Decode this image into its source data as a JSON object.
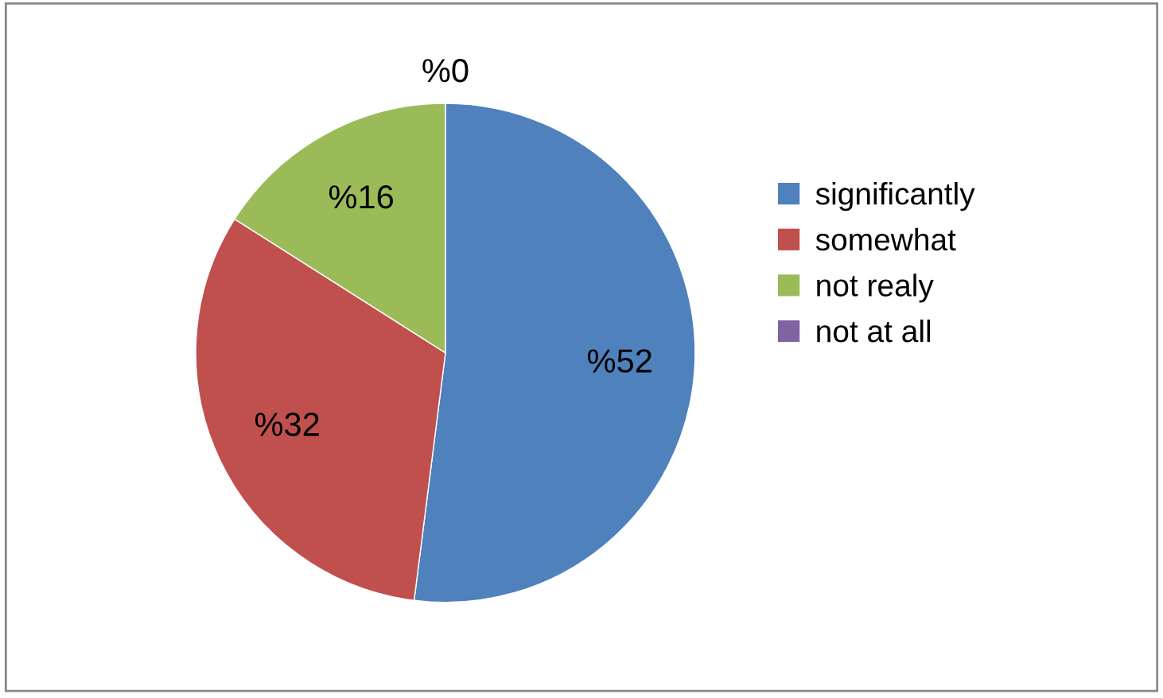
{
  "chart_data": {
    "type": "pie",
    "categories": [
      "significantly",
      "somewhat",
      "not realy",
      "not at all"
    ],
    "values": [
      52,
      32,
      16,
      0
    ],
    "colors": [
      "#4f81bd",
      "#c0504d",
      "#9bbb59",
      "#8064a2"
    ],
    "value_labels": [
      "%52",
      "%32",
      "%16",
      "%0"
    ],
    "legend": "right"
  }
}
